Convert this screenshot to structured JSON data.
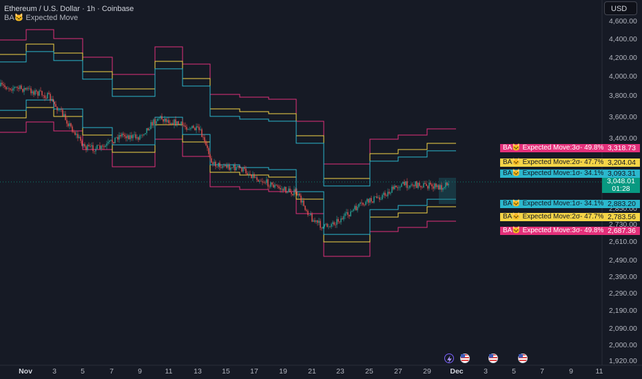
{
  "header": {
    "title": "Ethereum / U.S. Dollar · 1h · Coinbase",
    "indicator": "BA🐱 Expected Move"
  },
  "currency_button": "USD",
  "colors": {
    "background": "#161a25",
    "sigma1": "#2bb7cd",
    "sigma2": "#f5d547",
    "sigma3": "#e3307a",
    "candle_up": "#26a69a",
    "candle_down": "#ef5350",
    "current_price": "#089981"
  },
  "price_axis": [
    "4,600.00",
    "4,400.00",
    "4,200.00",
    "4,000.00",
    "3,800.00",
    "3,600.00",
    "3,400.00",
    "2,730.00",
    "2,610.00",
    "2,490.00",
    "2,390.00",
    "2,290.00",
    "2,190.00",
    "2,090.00",
    "2,000.00",
    "1,920.00"
  ],
  "price_axis_partial": "2,850.00",
  "time_axis": [
    "Nov",
    "3",
    "5",
    "7",
    "9",
    "11",
    "13",
    "15",
    "17",
    "19",
    "21",
    "23",
    "25",
    "27",
    "29",
    "Dec",
    "3",
    "5",
    "7",
    "9",
    "11"
  ],
  "band_labels": [
    {
      "text": "BA🐱 Expected Move:3σ- 49.8%",
      "price": "3,318.73",
      "color": "#e3307a"
    },
    {
      "text": "BA🐱 Expected Move:2σ- 47.7%",
      "price": "3,204.04",
      "color": "#f5d547"
    },
    {
      "text": "BA🐱 Expected Move:1σ- 34.1%",
      "price": "3,093.31",
      "color": "#2bb7cd"
    },
    {
      "text": "BA🐱 Expected Move:1σ- 34.1%",
      "price": "2,883.20",
      "color": "#2bb7cd"
    },
    {
      "text": "BA🐱 Expected Move:2σ- 47.7%",
      "price": "2,783.56",
      "color": "#f5d547"
    },
    {
      "text": "BA🐱 Expected Move:3σ- 49.8%",
      "price": "2,687.36",
      "color": "#e3307a"
    }
  ],
  "current_price": {
    "price": "3,048.01",
    "countdown": "01:28"
  },
  "events": [
    "lightning-event-icon",
    "us-flag-icon",
    "us-flag-icon",
    "us-flag-icon"
  ]
}
